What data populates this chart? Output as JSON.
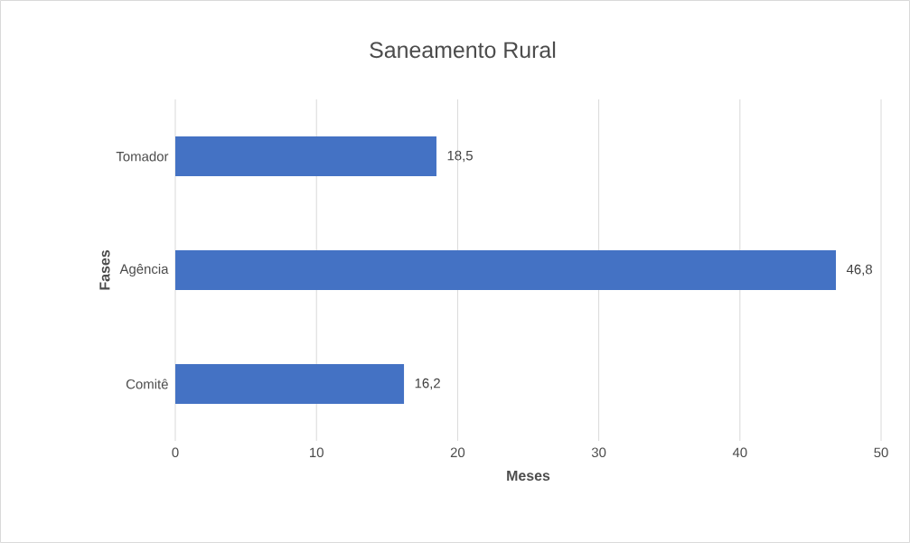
{
  "chart_data": {
    "type": "bar",
    "orientation": "horizontal",
    "title": "Saneamento Rural",
    "xlabel": "Meses",
    "ylabel": "Fases",
    "categories": [
      "Tomador",
      "Agência",
      "Comitê"
    ],
    "values": [
      18.5,
      46.8,
      16.2
    ],
    "value_labels": [
      "18,5",
      "46,8",
      "16,2"
    ],
    "color": "#4472c4",
    "xlim": [
      0,
      50
    ],
    "xticks": [
      0,
      10,
      20,
      30,
      40,
      50
    ],
    "grid": "x"
  }
}
